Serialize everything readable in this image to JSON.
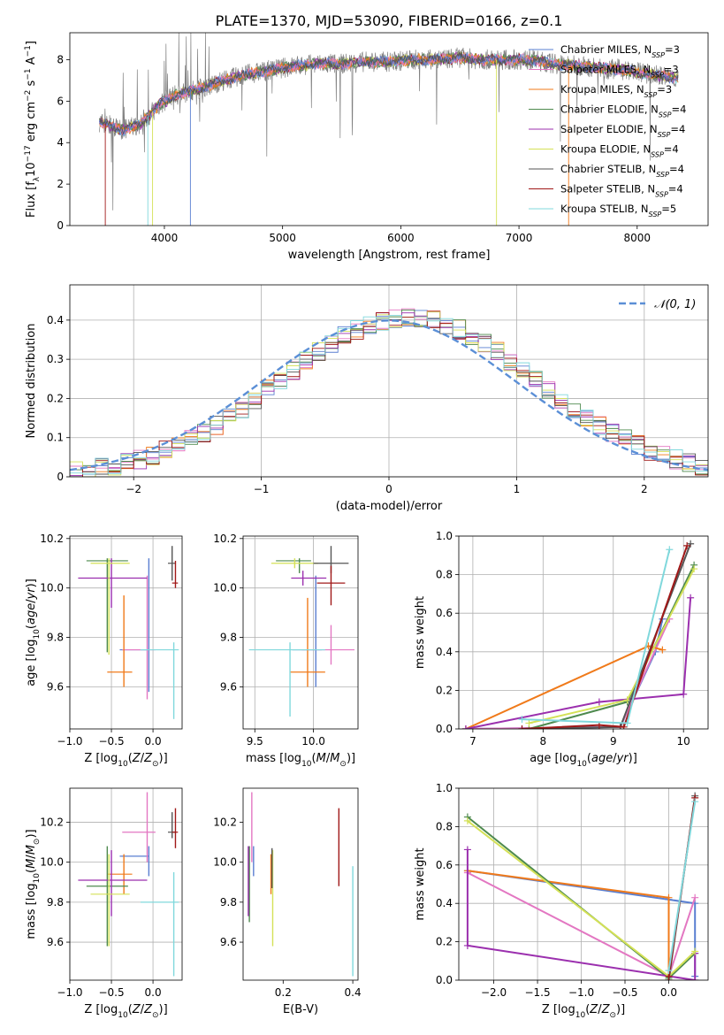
{
  "title": "PLATE=1370, MJD=53090, FIBERID=0166, z=0.1",
  "colors": {
    "Chabrier MILES": "#5a7fd1",
    "Salpeter MILES": "#e377c2",
    "Kroupa MILES": "#f07a1a",
    "Chabrier ELODIE": "#4e8a4e",
    "Salpeter ELODIE": "#9b2fae",
    "Kroupa ELODIE": "#d4e157",
    "Chabrier STELIB": "#555555",
    "Salpeter STELIB": "#a01818",
    "Kroupa STELIB": "#80d8dc"
  },
  "chart_data": [
    {
      "id": "spectrum",
      "type": "line",
      "xlabel": "wavelength [Angstrom, rest frame]",
      "ylabel": "Flux [f_λ10^-17 erg cm^-2 s^-1 A^-1]",
      "xlim": [
        3200,
        8600
      ],
      "ylim": [
        0,
        9.3
      ],
      "xticks": [
        4000,
        5000,
        6000,
        7000,
        8000
      ],
      "yticks": [
        0,
        2,
        4,
        6,
        8
      ],
      "legend_position": "right",
      "legend": [
        {
          "label": "Chabrier MILES, N_SSP=3",
          "series": "Chabrier MILES"
        },
        {
          "label": "Salpeter MILES, N_SSP=3",
          "series": "Salpeter MILES"
        },
        {
          "label": "Kroupa MILES, N_SSP=3",
          "series": "Kroupa MILES"
        },
        {
          "label": "Chabrier ELODIE, N_SSP=4",
          "series": "Chabrier ELODIE"
        },
        {
          "label": "Salpeter ELODIE, N_SSP=4",
          "series": "Salpeter ELODIE"
        },
        {
          "label": "Kroupa ELODIE, N_SSP=4",
          "series": "Kroupa ELODIE"
        },
        {
          "label": "Chabrier STELIB, N_SSP=4",
          "series": "Chabrier STELIB"
        },
        {
          "label": "Salpeter STELIB, N_SSP=4",
          "series": "Salpeter STELIB"
        },
        {
          "label": "Kroupa STELIB, N_SSP=5",
          "series": "Kroupa STELIB"
        }
      ],
      "data_spectrum_anchor": {
        "x": [
          3450,
          3650,
          3800,
          3950,
          4100,
          4300,
          4500,
          4700,
          4900,
          5100,
          5300,
          5500,
          5700,
          5900,
          6100,
          6300,
          6500,
          6700,
          6900,
          7100,
          7300,
          7500,
          7700,
          7900,
          8100,
          8350
        ],
        "y": [
          5.0,
          4.6,
          4.9,
          5.8,
          6.3,
          6.6,
          7.0,
          7.3,
          7.5,
          7.7,
          7.8,
          7.8,
          7.9,
          7.9,
          8.0,
          8.0,
          8.1,
          8.0,
          8.0,
          8.0,
          7.8,
          7.7,
          7.6,
          7.5,
          7.3,
          7.1
        ]
      }
    },
    {
      "id": "residuals",
      "type": "line",
      "xlabel": "(data-model)/error",
      "ylabel": "Normed distribution",
      "xlim": [
        -2.5,
        2.5
      ],
      "ylim": [
        0,
        0.49
      ],
      "xticks": [
        -2,
        -1,
        0,
        1,
        2
      ],
      "yticks": [
        0.0,
        0.1,
        0.2,
        0.3,
        0.4
      ],
      "grid": true,
      "legend_position": "top-right",
      "reference_label": "𝒩(0, 1)",
      "reference_color": "#5b8fd6",
      "hist_bin_width": 0.1
    },
    {
      "id": "z_age",
      "type": "scatter",
      "xlabel": "Z [log10(Z/Z⊙)]",
      "ylabel": "age [log10(age/yr)]",
      "xlim": [
        -1.0,
        0.35
      ],
      "ylim": [
        9.43,
        10.21
      ],
      "xticks": [
        -1.0,
        -0.5,
        0.0
      ],
      "yticks": [
        9.6,
        9.8,
        10.0,
        10.2
      ],
      "grid": true,
      "points": [
        {
          "series": "Chabrier MILES",
          "x": -0.05,
          "y": 9.75,
          "xerr": [
            0.35,
            0.0
          ],
          "yerr": [
            0.17,
            0.37
          ]
        },
        {
          "series": "Salpeter MILES",
          "x": -0.07,
          "y": 9.75,
          "xerr": [
            0.3,
            0.1
          ],
          "yerr": [
            0.2,
            0.3
          ]
        },
        {
          "series": "Kroupa MILES",
          "x": -0.35,
          "y": 9.66,
          "xerr": [
            0.2,
            0.1
          ],
          "yerr": [
            0.06,
            0.31
          ]
        },
        {
          "series": "Chabrier ELODIE",
          "x": -0.55,
          "y": 10.11,
          "xerr": [
            0.25,
            0.25
          ],
          "yerr": [
            0.37,
            0.01
          ]
        },
        {
          "series": "Salpeter ELODIE",
          "x": -0.5,
          "y": 10.04,
          "xerr": [
            0.4,
            0.43
          ],
          "yerr": [
            0.12,
            0.08
          ]
        },
        {
          "series": "Kroupa ELODIE",
          "x": -0.53,
          "y": 10.1,
          "xerr": [
            0.22,
            0.25
          ],
          "yerr": [
            0.37,
            0.02
          ]
        },
        {
          "series": "Chabrier STELIB",
          "x": 0.23,
          "y": 10.1,
          "xerr": [
            0.05,
            0.04
          ],
          "yerr": [
            0.07,
            0.07
          ]
        },
        {
          "series": "Salpeter STELIB",
          "x": 0.27,
          "y": 10.02,
          "xerr": [
            0.04,
            0.03
          ],
          "yerr": [
            0.02,
            0.09
          ]
        },
        {
          "series": "Kroupa STELIB",
          "x": 0.25,
          "y": 9.75,
          "xerr": [
            0.4,
            0.06
          ],
          "yerr": [
            0.28,
            0.03
          ]
        }
      ]
    },
    {
      "id": "mass_age",
      "type": "scatter",
      "xlabel": "mass [log10(M/M⊙)]",
      "ylabel": "",
      "xlim": [
        9.4,
        10.38
      ],
      "ylim": [
        9.43,
        10.21
      ],
      "xticks": [
        9.5,
        10.0
      ],
      "yticks": [
        9.6,
        9.8,
        10.0,
        10.2
      ],
      "grid": true,
      "points": [
        {
          "series": "Chabrier MILES",
          "x": 10.02,
          "y": 9.75,
          "xerr": [
            0.2,
            0.05
          ],
          "yerr": [
            0.15,
            0.3
          ]
        },
        {
          "series": "Salpeter MILES",
          "x": 10.15,
          "y": 9.75,
          "xerr": [
            0.25,
            0.2
          ],
          "yerr": [
            0.06,
            0.1
          ]
        },
        {
          "series": "Kroupa MILES",
          "x": 9.95,
          "y": 9.66,
          "xerr": [
            0.15,
            0.15
          ],
          "yerr": [
            0.06,
            0.3
          ]
        },
        {
          "series": "Chabrier ELODIE",
          "x": 9.88,
          "y": 10.11,
          "xerr": [
            0.2,
            0.1
          ],
          "yerr": [
            0.05,
            0.01
          ]
        },
        {
          "series": "Salpeter ELODIE",
          "x": 9.91,
          "y": 10.04,
          "xerr": [
            0.1,
            0.2
          ],
          "yerr": [
            0.03,
            0.03
          ]
        },
        {
          "series": "Kroupa ELODIE",
          "x": 9.84,
          "y": 10.1,
          "xerr": [
            0.2,
            0.2
          ],
          "yerr": [
            0.02,
            0.02
          ]
        },
        {
          "series": "Chabrier STELIB",
          "x": 10.15,
          "y": 10.1,
          "xerr": [
            0.15,
            0.15
          ],
          "yerr": [
            0.04,
            0.07
          ]
        },
        {
          "series": "Salpeter STELIB",
          "x": 10.15,
          "y": 10.02,
          "xerr": [
            0.12,
            0.12
          ],
          "yerr": [
            0.09,
            0.07
          ]
        },
        {
          "series": "Kroupa STELIB",
          "x": 9.8,
          "y": 9.75,
          "xerr": [
            0.35,
            0.3
          ],
          "yerr": [
            0.27,
            0.03
          ]
        }
      ]
    },
    {
      "id": "age_massweight",
      "type": "line",
      "xlabel": "age [log10(age/yr)]",
      "ylabel": "mass weight",
      "xlim": [
        6.8,
        10.35
      ],
      "ylim": [
        0,
        1.0
      ],
      "xticks": [
        7,
        8,
        9,
        10
      ],
      "yticks": [
        0.0,
        0.2,
        0.4,
        0.6,
        0.8,
        1.0
      ],
      "grid": true,
      "series": [
        {
          "name": "Chabrier MILES",
          "x": [
            6.9,
            9.1,
            9.6,
            9.7
          ],
          "y": [
            0.0,
            0.01,
            0.4,
            0.57
          ]
        },
        {
          "name": "Salpeter MILES",
          "x": [
            6.9,
            9.1,
            9.8
          ],
          "y": [
            0.0,
            0.01,
            0.57
          ]
        },
        {
          "name": "Kroupa MILES",
          "x": [
            6.9,
            9.5,
            9.7
          ],
          "y": [
            0.0,
            0.43,
            0.41
          ]
        },
        {
          "name": "Chabrier ELODIE",
          "x": [
            7.8,
            9.2,
            10.15
          ],
          "y": [
            0.0,
            0.14,
            0.85
          ]
        },
        {
          "name": "Salpeter ELODIE",
          "x": [
            6.9,
            8.8,
            10.0,
            10.1
          ],
          "y": [
            0.0,
            0.14,
            0.18,
            0.68
          ]
        },
        {
          "name": "Kroupa ELODIE",
          "x": [
            7.8,
            9.2,
            10.15
          ],
          "y": [
            0.03,
            0.15,
            0.83
          ]
        },
        {
          "name": "Chabrier STELIB",
          "x": [
            7.7,
            9.1,
            10.1
          ],
          "y": [
            0.0,
            0.01,
            0.96
          ]
        },
        {
          "name": "Salpeter STELIB",
          "x": [
            7.7,
            8.8,
            9.15,
            10.05
          ],
          "y": [
            0.0,
            0.02,
            0.01,
            0.95
          ]
        },
        {
          "name": "Kroupa STELIB",
          "x": [
            7.7,
            9.2,
            9.8
          ],
          "y": [
            0.05,
            0.03,
            0.93
          ]
        }
      ]
    },
    {
      "id": "z_mass",
      "type": "scatter",
      "xlabel": "Z [log10(Z/Z⊙)]",
      "ylabel": "mass [log10(M/M⊙)]",
      "xlim": [
        -1.0,
        0.35
      ],
      "ylim": [
        9.41,
        10.37
      ],
      "xticks": [
        -1.0,
        -0.5,
        0.0
      ],
      "yticks": [
        9.6,
        9.8,
        10.0,
        10.2
      ],
      "grid": true,
      "points": [
        {
          "series": "Chabrier MILES",
          "x": -0.05,
          "y": 10.03,
          "xerr": [
            0.35,
            0.0
          ],
          "yerr": [
            0.1,
            0.05
          ]
        },
        {
          "series": "Salpeter MILES",
          "x": -0.07,
          "y": 10.15,
          "xerr": [
            0.3,
            0.1
          ],
          "yerr": [
            0.15,
            0.2
          ]
        },
        {
          "series": "Kroupa MILES",
          "x": -0.35,
          "y": 9.94,
          "xerr": [
            0.2,
            0.1
          ],
          "yerr": [
            0.1,
            0.1
          ]
        },
        {
          "series": "Chabrier ELODIE",
          "x": -0.55,
          "y": 9.88,
          "xerr": [
            0.25,
            0.25
          ],
          "yerr": [
            0.3,
            0.2
          ]
        },
        {
          "series": "Salpeter ELODIE",
          "x": -0.5,
          "y": 9.91,
          "xerr": [
            0.4,
            0.43
          ],
          "yerr": [
            0.18,
            0.15
          ]
        },
        {
          "series": "Kroupa ELODIE",
          "x": -0.53,
          "y": 9.84,
          "xerr": [
            0.22,
            0.25
          ],
          "yerr": [
            0.26,
            0.2
          ]
        },
        {
          "series": "Chabrier STELIB",
          "x": 0.23,
          "y": 10.15,
          "xerr": [
            0.05,
            0.04
          ],
          "yerr": [
            0.03,
            0.1
          ]
        },
        {
          "series": "Salpeter STELIB",
          "x": 0.27,
          "y": 10.15,
          "xerr": [
            0.04,
            0.03
          ],
          "yerr": [
            0.08,
            0.12
          ]
        },
        {
          "series": "Kroupa STELIB",
          "x": 0.25,
          "y": 9.8,
          "xerr": [
            0.4,
            0.06
          ],
          "yerr": [
            0.37,
            0.15
          ]
        }
      ]
    },
    {
      "id": "ebv_mass",
      "type": "scatter",
      "xlabel": "E(B-V)",
      "ylabel": "",
      "xlim": [
        0.085,
        0.415
      ],
      "ylim": [
        9.41,
        10.37
      ],
      "xticks": [
        0.2,
        0.4
      ],
      "yticks": [
        9.6,
        9.8,
        10.0,
        10.2
      ],
      "grid": false,
      "points": [
        {
          "series": "Chabrier MILES",
          "x": 0.115,
          "y": 10.03,
          "xerr": [
            0.0,
            0.0
          ],
          "yerr": [
            0.1,
            0.05
          ]
        },
        {
          "series": "Salpeter MILES",
          "x": 0.11,
          "y": 10.15,
          "xerr": [
            0.0,
            0.0
          ],
          "yerr": [
            0.15,
            0.2
          ]
        },
        {
          "series": "Kroupa MILES",
          "x": 0.165,
          "y": 9.94,
          "xerr": [
            0.0,
            0.0
          ],
          "yerr": [
            0.1,
            0.1
          ]
        },
        {
          "series": "Chabrier ELODIE",
          "x": 0.103,
          "y": 9.9,
          "xerr": [
            0.0,
            0.0
          ],
          "yerr": [
            0.2,
            0.18
          ]
        },
        {
          "series": "Salpeter ELODIE",
          "x": 0.1,
          "y": 9.88,
          "xerr": [
            0.0,
            0.0
          ],
          "yerr": [
            0.15,
            0.2
          ]
        },
        {
          "series": "Kroupa ELODIE",
          "x": 0.17,
          "y": 9.8,
          "xerr": [
            0.0,
            0.0
          ],
          "yerr": [
            0.22,
            0.26
          ]
        },
        {
          "series": "Chabrier STELIB",
          "x": 0.168,
          "y": 9.97,
          "xerr": [
            0.0,
            0.0
          ],
          "yerr": [
            0.1,
            0.1
          ]
        },
        {
          "series": "Salpeter STELIB",
          "x": 0.36,
          "y": 10.1,
          "xerr": [
            0.0,
            0.0
          ],
          "yerr": [
            0.22,
            0.17
          ]
        },
        {
          "series": "Kroupa STELIB",
          "x": 0.4,
          "y": 9.8,
          "xerr": [
            0.0,
            0.0
          ],
          "yerr": [
            0.37,
            0.18
          ]
        }
      ]
    },
    {
      "id": "z_massweight",
      "type": "line",
      "xlabel": "Z [log10(Z/Z⊙)]",
      "ylabel": "mass weight",
      "xlim": [
        -2.4,
        0.45
      ],
      "ylim": [
        0,
        1.0
      ],
      "xticks": [
        -2.0,
        -1.5,
        -1.0,
        -0.5,
        0.0
      ],
      "yticks": [
        0.0,
        0.2,
        0.4,
        0.6,
        0.8,
        1.0
      ],
      "grid": true,
      "series": [
        {
          "name": "Chabrier MILES",
          "x": [
            -2.3,
            0.0,
            0.3,
            0.3
          ],
          "y": [
            0.57,
            0.42,
            0.4,
            0.02
          ]
        },
        {
          "name": "Salpeter MILES",
          "x": [
            -2.3,
            0.0,
            0.3
          ],
          "y": [
            0.56,
            0.02,
            0.43
          ]
        },
        {
          "name": "Kroupa MILES",
          "x": [
            -2.3,
            0.0,
            0.0
          ],
          "y": [
            0.57,
            0.43,
            0.0
          ]
        },
        {
          "name": "Chabrier ELODIE",
          "x": [
            -2.3,
            0.0,
            0.3
          ],
          "y": [
            0.85,
            0.01,
            0.14
          ]
        },
        {
          "name": "Salpeter ELODIE",
          "x": [
            -2.3,
            -2.3,
            0.3,
            0.3
          ],
          "y": [
            0.68,
            0.18,
            0.0,
            0.14
          ]
        },
        {
          "name": "Kroupa ELODIE",
          "x": [
            -2.3,
            0.0,
            0.3
          ],
          "y": [
            0.83,
            0.02,
            0.15
          ]
        },
        {
          "name": "Chabrier STELIB",
          "x": [
            0.0,
            0.3
          ],
          "y": [
            0.0,
            0.96
          ]
        },
        {
          "name": "Salpeter STELIB",
          "x": [
            0.0,
            0.3
          ],
          "y": [
            0.02,
            0.95
          ]
        },
        {
          "name": "Kroupa STELIB",
          "x": [
            0.0,
            0.3
          ],
          "y": [
            0.05,
            0.93
          ]
        }
      ]
    }
  ]
}
